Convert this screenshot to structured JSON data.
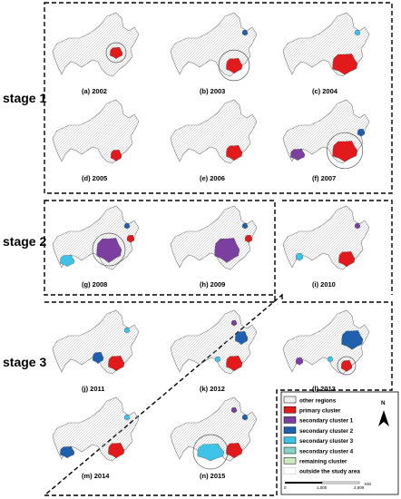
{
  "stages": [
    {
      "id": "stage1",
      "label": "stage 1"
    },
    {
      "id": "stage2",
      "label": "stage 2"
    },
    {
      "id": "stage3",
      "label": "stage 3"
    }
  ],
  "panels": [
    {
      "caption": "(a) 2002",
      "clusters": [
        {
          "type": "primary",
          "spot": "e"
        }
      ],
      "circle": {
        "spot": "e",
        "scale": 1.0
      }
    },
    {
      "caption": "(b) 2003",
      "clusters": [
        {
          "type": "primary",
          "spot": "s"
        },
        {
          "type": "secondary_2",
          "spot": "ne_small"
        }
      ],
      "circle": {
        "spot": "s",
        "scale": 1.3
      }
    },
    {
      "caption": "(c) 2004",
      "clusters": [
        {
          "type": "primary",
          "spot": "s_big"
        },
        {
          "type": "secondary_3",
          "spot": "ne_small"
        }
      ],
      "circle": null
    },
    {
      "caption": "(d) 2005",
      "clusters": [
        {
          "type": "primary",
          "spot": "s_small"
        }
      ],
      "circle": null
    },
    {
      "caption": "(e) 2006",
      "clusters": [
        {
          "type": "primary",
          "spot": "s"
        }
      ],
      "circle": null
    },
    {
      "caption": "(f) 2007",
      "clusters": [
        {
          "type": "primary",
          "spot": "s_big"
        },
        {
          "type": "secondary_1",
          "spot": "west"
        },
        {
          "type": "secondary_2",
          "spot": "east"
        }
      ],
      "circle": {
        "spot": "s_big",
        "scale": 1.1
      }
    },
    {
      "caption": "(g) 2008",
      "clusters": [
        {
          "type": "secondary_1",
          "spot": "center_big"
        },
        {
          "type": "secondary_3",
          "spot": "west"
        },
        {
          "type": "secondary_2",
          "spot": "ne_small"
        },
        {
          "type": "primary",
          "spot": "east"
        }
      ],
      "circle": {
        "spot": "center_big",
        "scale": 1.0
      }
    },
    {
      "caption": "(h) 2009",
      "clusters": [
        {
          "type": "secondary_1",
          "spot": "center_big"
        },
        {
          "type": "primary",
          "spot": "east"
        },
        {
          "type": "secondary_2",
          "spot": "ne_small"
        }
      ],
      "circle": null
    },
    {
      "caption": "(i) 2010",
      "clusters": [
        {
          "type": "primary",
          "spot": "s"
        },
        {
          "type": "secondary_3",
          "spot": "west_small"
        },
        {
          "type": "secondary_1",
          "spot": "ne_small"
        }
      ],
      "circle": null
    },
    {
      "caption": "(j) 2011",
      "clusters": [
        {
          "type": "primary",
          "spot": "s"
        },
        {
          "type": "secondary_2",
          "spot": "mid"
        },
        {
          "type": "secondary_3",
          "spot": "ne_small"
        }
      ],
      "circle": null
    },
    {
      "caption": "(k) 2012",
      "clusters": [
        {
          "type": "primary",
          "spot": "s"
        },
        {
          "type": "secondary_2",
          "spot": "ne"
        },
        {
          "type": "secondary_1",
          "spot": "n_small"
        },
        {
          "type": "secondary_3",
          "spot": "mid_small"
        }
      ],
      "circle": null
    },
    {
      "caption": "(l) 2013",
      "clusters": [
        {
          "type": "secondary_2",
          "spot": "ne_big"
        },
        {
          "type": "primary",
          "spot": "s_small"
        },
        {
          "type": "secondary_1",
          "spot": "west_small"
        },
        {
          "type": "secondary_3",
          "spot": "mid_small"
        }
      ],
      "circle": {
        "spot": "s_small",
        "scale": 1.0
      }
    },
    {
      "caption": "(m) 2014",
      "clusters": [
        {
          "type": "primary",
          "spot": "s"
        },
        {
          "type": "secondary_2",
          "spot": "west"
        },
        {
          "type": "secondary_3",
          "spot": "ne_small"
        }
      ],
      "circle": null
    },
    {
      "caption": "(n) 2015",
      "clusters": [
        {
          "type": "secondary_3",
          "spot": "sw_big"
        },
        {
          "type": "primary",
          "spot": "s"
        },
        {
          "type": "secondary_2",
          "spot": "ne_small"
        },
        {
          "type": "secondary_1",
          "spot": "n_small"
        }
      ],
      "circle": {
        "spot": "sw_big",
        "scale": 1.0
      }
    }
  ],
  "legend": {
    "items": [
      {
        "key": "other",
        "label": "other regions",
        "color": "#ffffff",
        "style": "hatched"
      },
      {
        "key": "primary",
        "label": "primary cluster",
        "color": "#e31a1c"
      },
      {
        "key": "secondary_1",
        "label": "secondary cluster 1",
        "color": "#7b3fa0"
      },
      {
        "key": "secondary_2",
        "label": "secondary cluster 2",
        "color": "#1f5fae"
      },
      {
        "key": "secondary_3",
        "label": "secondary cluster 3",
        "color": "#3fc2e8"
      },
      {
        "key": "secondary_4",
        "label": "secondary cluster 4",
        "color": "#88d3c8"
      },
      {
        "key": "remaining",
        "label": "remaining cluster",
        "color": "#cfe9c0"
      },
      {
        "key": "outside",
        "label": "outside the study area",
        "color": "#ffffff",
        "style": "blank"
      }
    ],
    "north_label": "N",
    "scale_labels": [
      "0",
      "1,000",
      "2,000"
    ],
    "scale_unit": "KM"
  }
}
